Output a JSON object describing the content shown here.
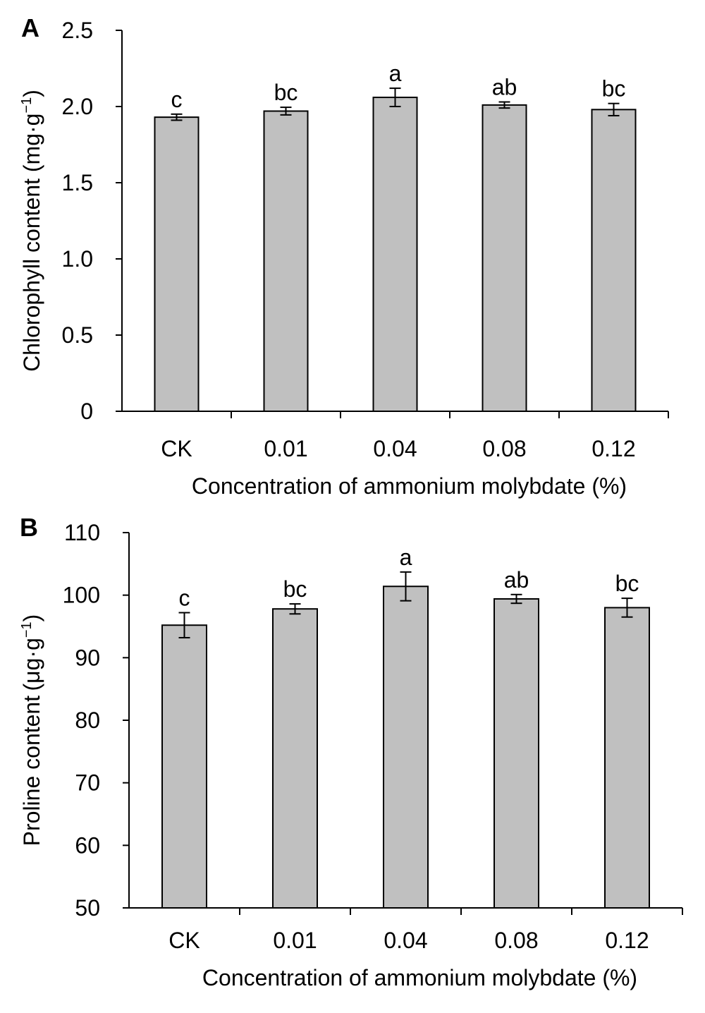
{
  "chart_data": [
    {
      "panel": "A",
      "type": "bar",
      "title": "",
      "xlabel": "Concentration of ammonium molybdate (%)",
      "ylabel": "Chlorophyll content (mg·g",
      "ylabel_sup": "−1",
      "ylabel_tail": ")",
      "categories": [
        "CK",
        "0.01",
        "0.04",
        "0.08",
        "0.12"
      ],
      "values": [
        1.93,
        1.97,
        2.06,
        2.01,
        1.98
      ],
      "errors": [
        0.02,
        0.025,
        0.06,
        0.02,
        0.04
      ],
      "significance": [
        "c",
        "bc",
        "a",
        "ab",
        "bc"
      ],
      "ylim": [
        0,
        2.5
      ],
      "yticks": [
        "0",
        "0.5",
        "1.0",
        "1.5",
        "2.0",
        "2.5"
      ],
      "ytick_values": [
        0,
        0.5,
        1.0,
        1.5,
        2.0,
        2.5
      ],
      "bar_color": "#c0c0c0",
      "grid": false,
      "legend": "none"
    },
    {
      "panel": "B",
      "type": "bar",
      "title": "",
      "xlabel": "Concentration of ammonium molybdate (%)",
      "ylabel": "Proline content (μg·g",
      "ylabel_sup": "−1",
      "ylabel_tail": ")",
      "categories": [
        "CK",
        "0.01",
        "0.04",
        "0.08",
        "0.12"
      ],
      "values": [
        95.2,
        97.8,
        101.4,
        99.4,
        98.0
      ],
      "errors": [
        2.0,
        0.8,
        2.3,
        0.7,
        1.5
      ],
      "significance": [
        "c",
        "bc",
        "a",
        "ab",
        "bc"
      ],
      "ylim": [
        50,
        110
      ],
      "yticks": [
        "50",
        "60",
        "70",
        "80",
        "90",
        "100",
        "110"
      ],
      "ytick_values": [
        50,
        60,
        70,
        80,
        90,
        100,
        110
      ],
      "bar_color": "#c0c0c0",
      "grid": false,
      "legend": "none"
    }
  ]
}
